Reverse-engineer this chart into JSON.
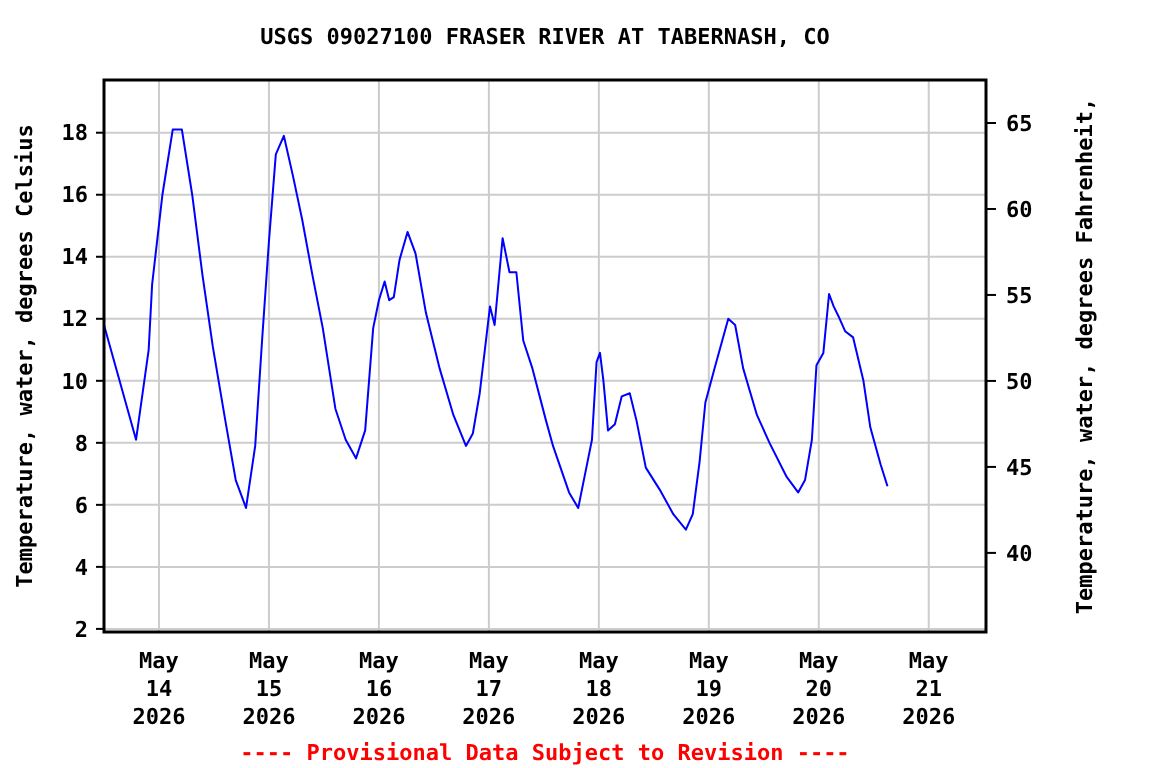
{
  "chart_data": {
    "type": "line",
    "title": "USGS 09027100 FRASER RIVER AT TABERNASH, CO",
    "ylabel": "Temperature, water, degrees Celsius",
    "y2label": "Temperature, water, degrees Fahrenheit,",
    "annotations": [
      "---- Provisional Data Subject to Revision ----"
    ],
    "x": [
      "2026-05-13T12:00",
      "2026-05-13T19:00",
      "2026-05-13T21:45",
      "2026-05-13T22:30",
      "2026-05-14T00:45",
      "2026-05-14T03:00",
      "2026-05-14T05:00",
      "2026-05-14T07:15",
      "2026-05-14T09:30",
      "2026-05-14T11:45",
      "2026-05-14T14:30",
      "2026-05-14T16:45",
      "2026-05-14T19:00",
      "2026-05-14T21:00",
      "2026-05-14T22:30",
      "2026-05-15T00:00",
      "2026-05-15T01:30",
      "2026-05-15T03:15",
      "2026-05-15T05:15",
      "2026-05-15T07:15",
      "2026-05-15T09:30",
      "2026-05-15T11:45",
      "2026-05-15T14:30",
      "2026-05-15T16:45",
      "2026-05-15T19:00",
      "2026-05-15T21:00",
      "2026-05-15T22:45",
      "2026-05-16T00:00",
      "2026-05-16T01:15",
      "2026-05-16T02:15",
      "2026-05-16T03:15",
      "2026-05-16T04:30",
      "2026-05-16T06:15",
      "2026-05-16T08:00",
      "2026-05-16T10:15",
      "2026-05-16T13:15",
      "2026-05-16T16:15",
      "2026-05-16T19:00",
      "2026-05-16T20:30",
      "2026-05-16T22:00",
      "2026-05-17T00:15",
      "2026-05-17T01:15",
      "2026-05-17T02:00",
      "2026-05-17T03:00",
      "2026-05-17T04:30",
      "2026-05-17T06:00",
      "2026-05-17T07:30",
      "2026-05-17T09:30",
      "2026-05-17T12:30",
      "2026-05-17T14:00",
      "2026-05-17T17:30",
      "2026-05-17T19:30",
      "2026-05-17T21:00",
      "2026-05-17T22:30",
      "2026-05-17T23:30",
      "2026-05-18T00:15",
      "2026-05-18T01:00",
      "2026-05-18T02:00",
      "2026-05-18T03:30",
      "2026-05-18T05:00",
      "2026-05-18T06:45",
      "2026-05-18T08:15",
      "2026-05-18T10:15",
      "2026-05-18T13:15",
      "2026-05-18T16:15",
      "2026-05-18T19:00",
      "2026-05-18T20:30",
      "2026-05-18T22:00",
      "2026-05-18T23:15",
      "2026-05-19T01:15",
      "2026-05-19T04:15",
      "2026-05-19T05:45",
      "2026-05-19T07:30",
      "2026-05-19T10:30",
      "2026-05-19T13:15",
      "2026-05-19T17:00",
      "2026-05-19T19:30",
      "2026-05-19T21:00",
      "2026-05-19T22:30",
      "2026-05-19T23:30",
      "2026-05-20T01:00",
      "2026-05-20T02:15",
      "2026-05-20T03:15",
      "2026-05-20T04:15",
      "2026-05-20T05:45",
      "2026-05-20T07:30",
      "2026-05-20T09:45",
      "2026-05-20T11:15",
      "2026-05-20T13:30",
      "2026-05-20T15:00"
    ],
    "series": [
      {
        "color": "#0000ff",
        "values": [
          11.8,
          8.1,
          11.0,
          13.1,
          16.0,
          18.1,
          18.1,
          16.0,
          13.4,
          11.1,
          8.7,
          6.8,
          5.9,
          7.9,
          11.3,
          14.5,
          17.3,
          17.9,
          16.6,
          15.2,
          13.4,
          11.7,
          9.1,
          8.1,
          7.5,
          8.4,
          11.7,
          12.6,
          13.2,
          12.6,
          12.7,
          13.9,
          14.8,
          14.1,
          12.2,
          10.4,
          8.9,
          7.9,
          8.3,
          9.6,
          12.4,
          11.8,
          13.0,
          14.6,
          13.5,
          13.5,
          11.3,
          10.4,
          8.7,
          7.9,
          6.4,
          5.9,
          7.0,
          8.1,
          10.6,
          10.9,
          10.0,
          8.4,
          8.6,
          9.5,
          9.6,
          8.7,
          7.2,
          6.5,
          5.7,
          5.2,
          5.7,
          7.4,
          9.3,
          10.4,
          12.0,
          11.8,
          10.4,
          8.9,
          8.0,
          6.9,
          6.4,
          6.8,
          8.1,
          10.5,
          10.9,
          12.8,
          12.4,
          12.1,
          11.6,
          11.4,
          10.0,
          8.5,
          7.3,
          6.6
        ]
      }
    ],
    "xlim": [
      "2026-05-13T12:00",
      "2026-05-21T12:30"
    ],
    "xticks": [
      {
        "value": "2026-05-14",
        "label": "May\n14\n2026"
      },
      {
        "value": "2026-05-15",
        "label": "May\n15\n2026"
      },
      {
        "value": "2026-05-16",
        "label": "May\n16\n2026"
      },
      {
        "value": "2026-05-17",
        "label": "May\n17\n2026"
      },
      {
        "value": "2026-05-18",
        "label": "May\n18\n2026"
      },
      {
        "value": "2026-05-19",
        "label": "May\n19\n2026"
      },
      {
        "value": "2026-05-20",
        "label": "May\n20\n2026"
      },
      {
        "value": "2026-05-21",
        "label": "May\n21\n2026"
      }
    ],
    "ylim": [
      1.9,
      19.7
    ],
    "yticks": [
      2,
      4,
      6,
      8,
      10,
      12,
      14,
      16,
      18
    ],
    "y2lim": [
      35.4,
      67.5
    ],
    "y2ticks": [
      40,
      45,
      50,
      55,
      60,
      65
    ],
    "grid": true,
    "line_style": "solid",
    "marker": "none"
  }
}
